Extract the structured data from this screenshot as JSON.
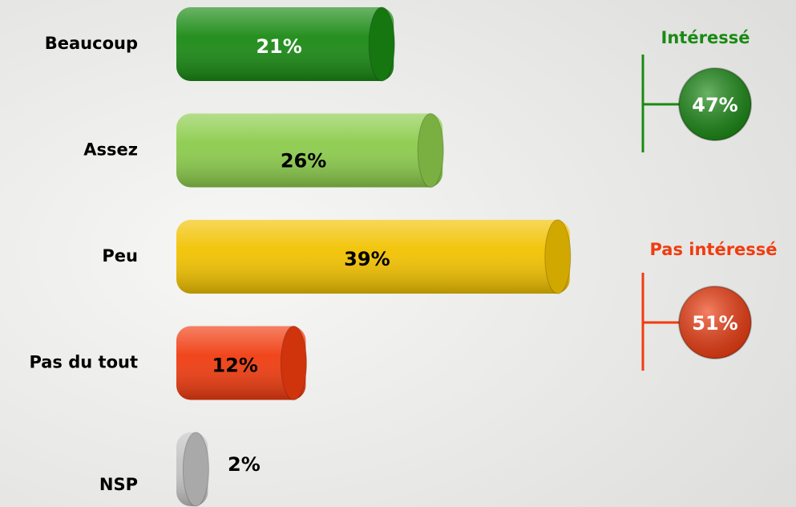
{
  "chart_data": {
    "type": "bar",
    "orientation": "horizontal",
    "categories": [
      "Beaucoup",
      "Assez",
      "Peu",
      "Pas du tout",
      "NSP"
    ],
    "values": [
      21,
      26,
      39,
      12,
      2
    ],
    "value_labels": [
      "21%",
      "26%",
      "39%",
      "12%",
      "2%"
    ],
    "colors": [
      "#1a8a14",
      "#8ccc4c",
      "#f2c200",
      "#f03c10",
      "#c4c4c4"
    ],
    "label_colors": [
      "#ffffff",
      "#000000",
      "#000000",
      "#000000",
      "#000000"
    ],
    "groups": [
      {
        "name": "Intéressé",
        "value": 47,
        "value_label": "47%",
        "color": "#1a8a14"
      },
      {
        "name": "Pas intéressé",
        "value": 51,
        "value_label": "51%",
        "color": "#f03c10"
      }
    ]
  }
}
